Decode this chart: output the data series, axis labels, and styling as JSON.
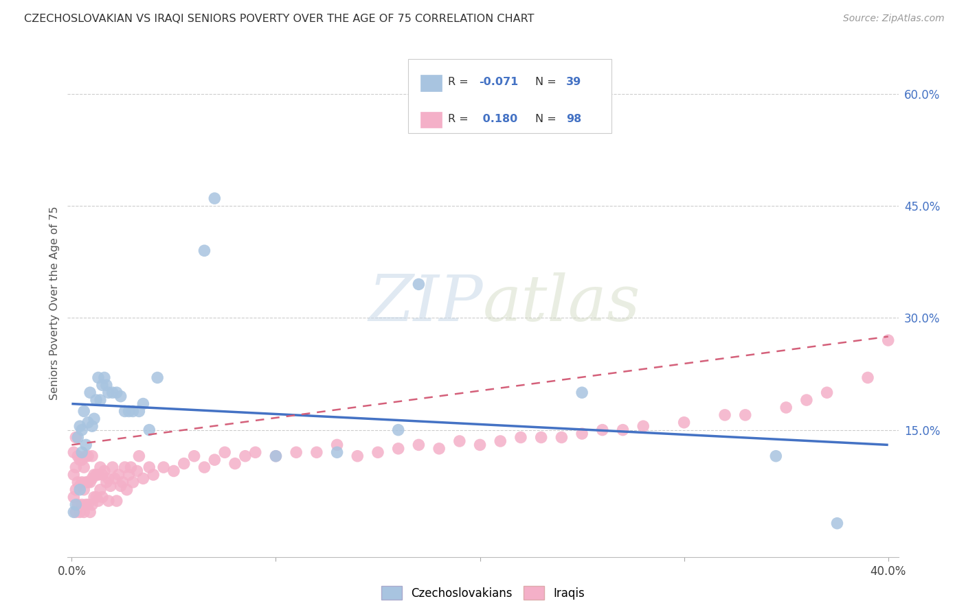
{
  "title": "CZECHOSLOVAKIAN VS IRAQI SENIORS POVERTY OVER THE AGE OF 75 CORRELATION CHART",
  "source": "Source: ZipAtlas.com",
  "ylabel": "Seniors Poverty Over the Age of 75",
  "r_czech": -0.071,
  "n_czech": 39,
  "r_iraqi": 0.18,
  "n_iraqi": 98,
  "color_czech": "#a8c4e0",
  "color_iraqi": "#f4b0c8",
  "line_color_czech": "#4472c4",
  "line_color_iraqi": "#d4607a",
  "background_color": "#ffffff",
  "xlim": [
    -0.002,
    0.405
  ],
  "ylim": [
    -0.02,
    0.66
  ],
  "ytick_vals": [
    0.15,
    0.3,
    0.45,
    0.6
  ],
  "ytick_labels": [
    "15.0%",
    "30.0%",
    "45.0%",
    "60.0%"
  ],
  "xtick_vals": [
    0.0,
    0.1,
    0.2,
    0.3,
    0.4
  ],
  "xtick_labels": [
    "0.0%",
    "",
    "",
    "",
    "40.0%"
  ],
  "czech_x": [
    0.001,
    0.002,
    0.003,
    0.004,
    0.004,
    0.005,
    0.005,
    0.006,
    0.007,
    0.008,
    0.009,
    0.01,
    0.011,
    0.012,
    0.013,
    0.014,
    0.015,
    0.016,
    0.017,
    0.018,
    0.02,
    0.022,
    0.024,
    0.026,
    0.028,
    0.03,
    0.033,
    0.035,
    0.038,
    0.042,
    0.065,
    0.07,
    0.1,
    0.13,
    0.16,
    0.17,
    0.25,
    0.345,
    0.375
  ],
  "czech_y": [
    0.04,
    0.05,
    0.14,
    0.07,
    0.155,
    0.15,
    0.12,
    0.175,
    0.13,
    0.16,
    0.2,
    0.155,
    0.165,
    0.19,
    0.22,
    0.19,
    0.21,
    0.22,
    0.21,
    0.2,
    0.2,
    0.2,
    0.195,
    0.175,
    0.175,
    0.175,
    0.175,
    0.185,
    0.15,
    0.22,
    0.39,
    0.46,
    0.115,
    0.12,
    0.15,
    0.345,
    0.2,
    0.115,
    0.025
  ],
  "iraqi_x": [
    0.001,
    0.001,
    0.001,
    0.002,
    0.002,
    0.002,
    0.002,
    0.003,
    0.003,
    0.003,
    0.004,
    0.004,
    0.004,
    0.005,
    0.005,
    0.005,
    0.006,
    0.006,
    0.006,
    0.007,
    0.007,
    0.007,
    0.008,
    0.008,
    0.008,
    0.009,
    0.009,
    0.01,
    0.01,
    0.01,
    0.011,
    0.011,
    0.012,
    0.012,
    0.013,
    0.013,
    0.014,
    0.014,
    0.015,
    0.015,
    0.016,
    0.017,
    0.018,
    0.018,
    0.019,
    0.02,
    0.021,
    0.022,
    0.023,
    0.024,
    0.025,
    0.026,
    0.027,
    0.028,
    0.029,
    0.03,
    0.032,
    0.033,
    0.035,
    0.038,
    0.04,
    0.045,
    0.05,
    0.055,
    0.06,
    0.065,
    0.07,
    0.075,
    0.08,
    0.085,
    0.09,
    0.1,
    0.11,
    0.12,
    0.13,
    0.14,
    0.15,
    0.16,
    0.17,
    0.18,
    0.19,
    0.2,
    0.21,
    0.22,
    0.23,
    0.24,
    0.25,
    0.26,
    0.27,
    0.28,
    0.3,
    0.32,
    0.33,
    0.35,
    0.36,
    0.37,
    0.39,
    0.4
  ],
  "iraqi_y": [
    0.06,
    0.09,
    0.12,
    0.04,
    0.07,
    0.1,
    0.14,
    0.05,
    0.08,
    0.115,
    0.04,
    0.075,
    0.11,
    0.05,
    0.08,
    0.11,
    0.04,
    0.07,
    0.1,
    0.05,
    0.08,
    0.115,
    0.05,
    0.08,
    0.115,
    0.04,
    0.08,
    0.05,
    0.085,
    0.115,
    0.06,
    0.09,
    0.06,
    0.09,
    0.055,
    0.09,
    0.07,
    0.1,
    0.06,
    0.09,
    0.095,
    0.08,
    0.055,
    0.085,
    0.075,
    0.1,
    0.085,
    0.055,
    0.09,
    0.075,
    0.08,
    0.1,
    0.07,
    0.09,
    0.1,
    0.08,
    0.095,
    0.115,
    0.085,
    0.1,
    0.09,
    0.1,
    0.095,
    0.105,
    0.115,
    0.1,
    0.11,
    0.12,
    0.105,
    0.115,
    0.12,
    0.115,
    0.12,
    0.12,
    0.13,
    0.115,
    0.12,
    0.125,
    0.13,
    0.125,
    0.135,
    0.13,
    0.135,
    0.14,
    0.14,
    0.14,
    0.145,
    0.15,
    0.15,
    0.155,
    0.16,
    0.17,
    0.17,
    0.18,
    0.19,
    0.2,
    0.22,
    0.27
  ],
  "czech_line_x0": 0.0,
  "czech_line_x1": 0.4,
  "czech_line_y0": 0.185,
  "czech_line_y1": 0.13,
  "iraqi_line_x0": 0.0,
  "iraqi_line_x1": 0.4,
  "iraqi_line_y0": 0.13,
  "iraqi_line_y1": 0.275
}
